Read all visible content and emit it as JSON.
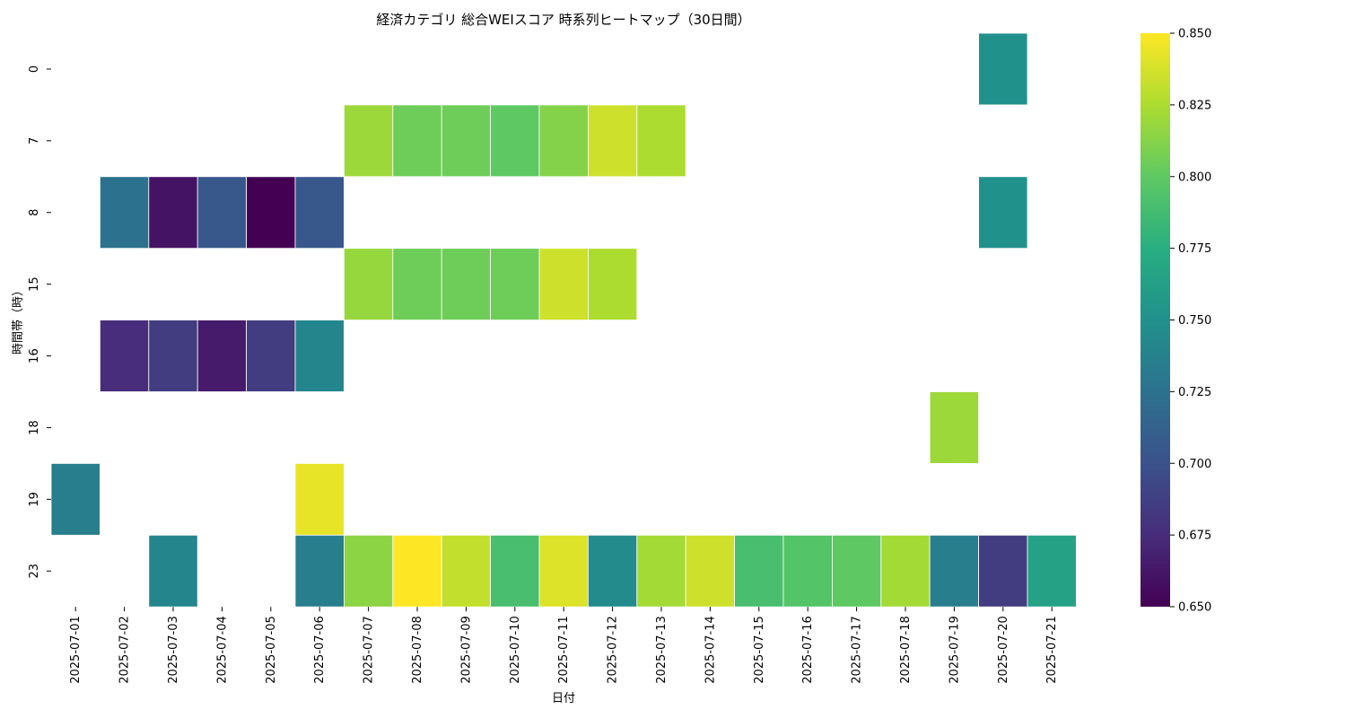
{
  "chart_data": {
    "type": "heatmap",
    "title": "経済カテゴリ 総合WEIスコア 時系列ヒートマップ（30日間）",
    "xlabel": "日付",
    "ylabel": "時間帯（時）",
    "x_categories": [
      "2025-07-01",
      "2025-07-02",
      "2025-07-03",
      "2025-07-04",
      "2025-07-05",
      "2025-07-06",
      "2025-07-07",
      "2025-07-08",
      "2025-07-09",
      "2025-07-10",
      "2025-07-11",
      "2025-07-12",
      "2025-07-13",
      "2025-07-14",
      "2025-07-15",
      "2025-07-16",
      "2025-07-17",
      "2025-07-18",
      "2025-07-19",
      "2025-07-20",
      "2025-07-21"
    ],
    "y_categories": [
      "0",
      "7",
      "8",
      "15",
      "16",
      "18",
      "19",
      "23"
    ],
    "values": [
      [
        null,
        null,
        null,
        null,
        null,
        null,
        null,
        null,
        null,
        null,
        null,
        null,
        null,
        null,
        null,
        null,
        null,
        null,
        null,
        0.75,
        null
      ],
      [
        null,
        null,
        null,
        null,
        null,
        null,
        0.82,
        0.805,
        0.805,
        0.8,
        0.812,
        0.835,
        0.825,
        null,
        null,
        null,
        null,
        null,
        null,
        null,
        null
      ],
      [
        null,
        0.725,
        0.66,
        0.705,
        0.65,
        0.705,
        null,
        null,
        null,
        null,
        null,
        null,
        null,
        null,
        null,
        null,
        null,
        null,
        null,
        0.75,
        null
      ],
      [
        null,
        null,
        null,
        null,
        null,
        null,
        0.818,
        0.805,
        0.805,
        0.805,
        0.835,
        0.825,
        null,
        null,
        null,
        null,
        null,
        null,
        null,
        null,
        null
      ],
      [
        null,
        0.675,
        0.685,
        0.665,
        0.685,
        0.74,
        null,
        null,
        null,
        null,
        null,
        null,
        null,
        null,
        null,
        null,
        null,
        null,
        null,
        null,
        null
      ],
      [
        null,
        null,
        null,
        null,
        null,
        null,
        null,
        null,
        null,
        null,
        null,
        null,
        null,
        null,
        null,
        null,
        null,
        null,
        0.82,
        null,
        null
      ],
      [
        0.735,
        null,
        null,
        null,
        null,
        0.843,
        null,
        null,
        null,
        null,
        null,
        null,
        null,
        null,
        null,
        null,
        null,
        null,
        null,
        null,
        null
      ],
      [
        null,
        null,
        0.74,
        null,
        null,
        0.735,
        0.815,
        0.85,
        0.832,
        0.79,
        0.84,
        0.745,
        0.822,
        0.835,
        0.79,
        0.795,
        0.8,
        0.822,
        0.735,
        0.685,
        0.765
      ]
    ],
    "vmin": 0.65,
    "vmax": 0.85,
    "colormap": "viridis",
    "colorbar_ticks": [
      "0.650",
      "0.675",
      "0.700",
      "0.725",
      "0.750",
      "0.775",
      "0.800",
      "0.825",
      "0.850"
    ]
  }
}
